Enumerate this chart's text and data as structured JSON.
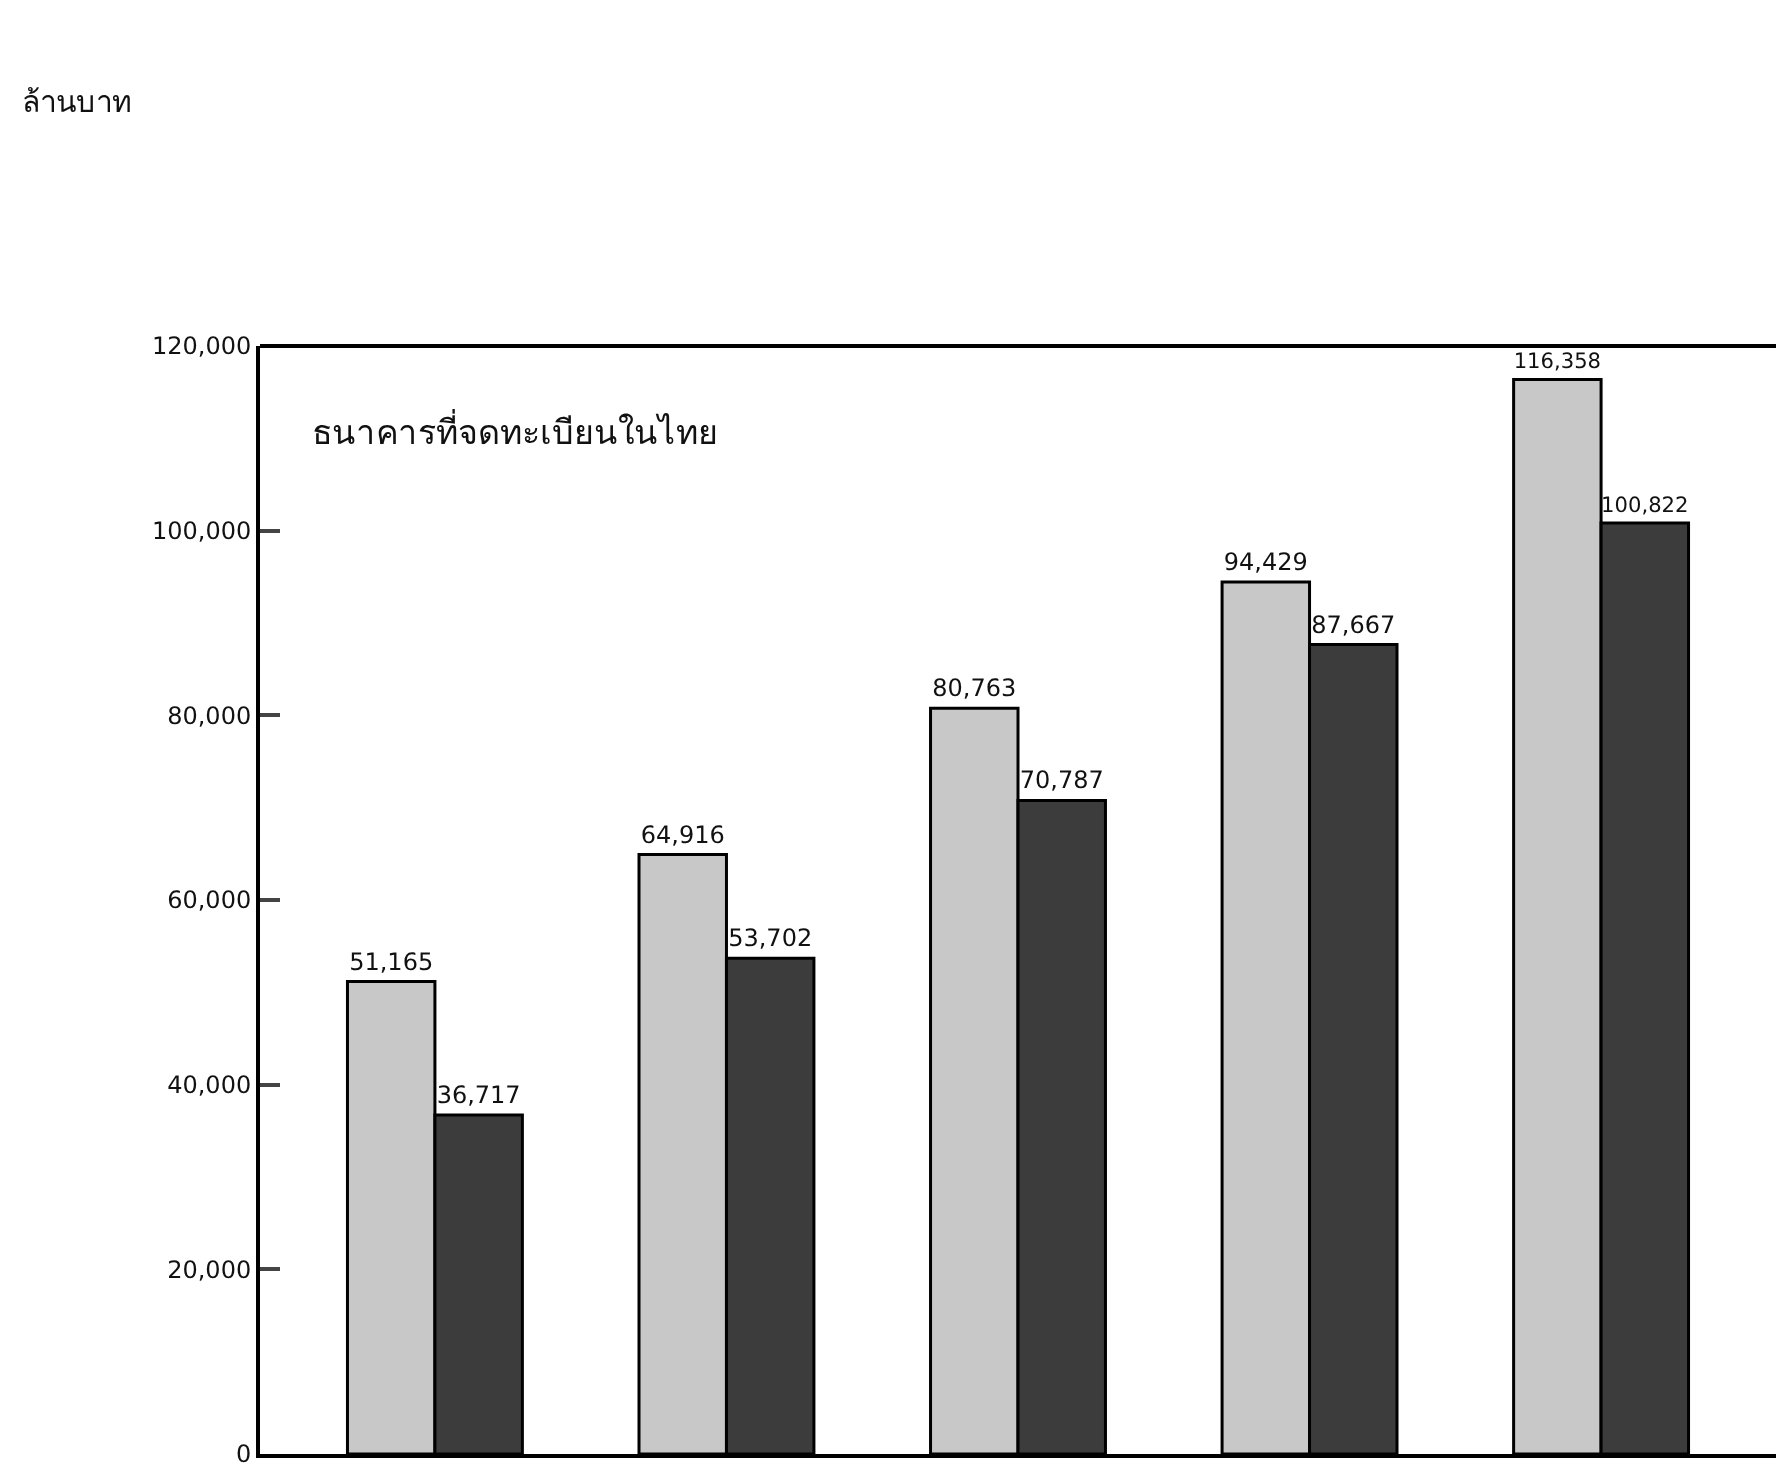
{
  "chart_data": {
    "type": "bar",
    "title": "ธนาคารที่จดทะเบียนในไทย",
    "annotations": [
      "ล้านบาท"
    ],
    "categories": [
      null,
      null,
      null,
      null,
      null
    ],
    "series": [
      {
        "color": "#c8c8c8",
        "values": [
          51165,
          64916,
          80763,
          94429,
          116358
        ],
        "value_labels": [
          "51,165",
          "64,916",
          "80,763",
          "94,429",
          "116,358"
        ]
      },
      {
        "color": "#3c3c3c",
        "values": [
          36717,
          53702,
          70787,
          87667,
          100822
        ],
        "value_labels": [
          "36,717",
          "53,702",
          "70,787",
          "87,667",
          "100,822"
        ]
      }
    ],
    "ylim": [
      0,
      120000
    ],
    "yticks": [
      0,
      {
        "value": 20000,
        "label": "20,000"
      },
      {
        "value": 40000,
        "label": "40,000"
      },
      {
        "value": 60000,
        "label": "60,000"
      },
      {
        "value": 80000,
        "label": "80,000"
      },
      {
        "value": 100000,
        "label": "100,000"
      },
      {
        "value": 120000,
        "label": "120,000"
      }
    ]
  }
}
